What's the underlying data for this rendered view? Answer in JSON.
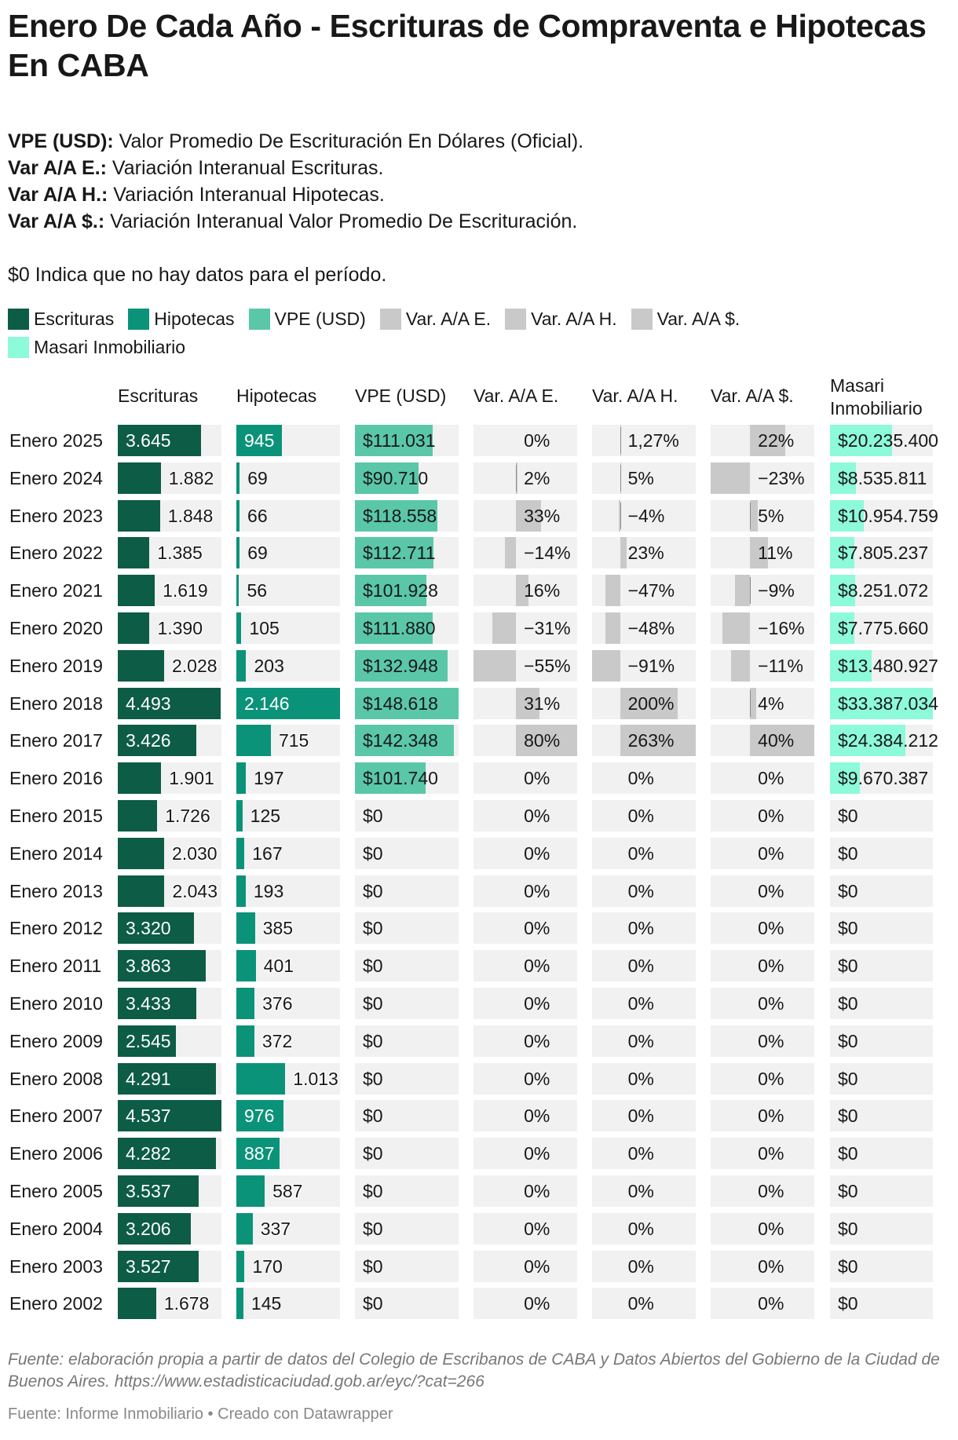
{
  "title": "Enero De Cada Año - Escrituras de Compraventa e Hipotecas En CABA",
  "description": [
    {
      "term": "VPE (USD):",
      "text": " Valor Promedio De Escrituración En Dólares (Oficial)."
    },
    {
      "term": "Var A/A E.:",
      "text": " Variación Interanual Escrituras."
    },
    {
      "term": "Var A/A H.:",
      "text": " Variación Interanual Hipotecas."
    },
    {
      "term": "Var A/A $.:",
      "text": " Variación Interanual Valor Promedio De Escrituración."
    }
  ],
  "note": "$0 Indica que no hay datos para el período.",
  "colors": {
    "escrituras": "#0d5c45",
    "hipotecas": "#0b9379",
    "vpe": "#5ac7a8",
    "var": "#c9c9c9",
    "masari": "#8dfad9",
    "cell_bg": "#f1f1f1"
  },
  "chart_data": {
    "type": "table",
    "legend": [
      "Escrituras",
      "Hipotecas",
      "VPE (USD)",
      "Var. A/A E.",
      "Var. A/A H.",
      "Var. A/A $.",
      "Masari Inmobiliario"
    ],
    "columns": [
      "Escrituras",
      "Hipotecas",
      "VPE (USD)",
      "Var. A/A E.",
      "Var. A/A H.",
      "Var. A/A $.",
      "Masari Inmobiliario"
    ],
    "categories": [
      "Enero 2025",
      "Enero 2024",
      "Enero 2023",
      "Enero 2022",
      "Enero 2021",
      "Enero 2020",
      "Enero 2019",
      "Enero 2018",
      "Enero 2017",
      "Enero 2016",
      "Enero 2015",
      "Enero 2014",
      "Enero 2013",
      "Enero 2012",
      "Enero 2011",
      "Enero 2010",
      "Enero 2009",
      "Enero 2008",
      "Enero 2007",
      "Enero 2006",
      "Enero 2005",
      "Enero 2004",
      "Enero 2003",
      "Enero 2002"
    ],
    "series": [
      {
        "name": "Escrituras",
        "values": [
          3645,
          1882,
          1848,
          1385,
          1619,
          1390,
          2028,
          4493,
          3426,
          1901,
          1726,
          2030,
          2043,
          3320,
          3863,
          3433,
          2545,
          4291,
          4537,
          4282,
          3537,
          3206,
          3527,
          1678
        ],
        "labels": [
          "3.645",
          "1.882",
          "1.848",
          "1.385",
          "1.619",
          "1.390",
          "2.028",
          "4.493",
          "3.426",
          "1.901",
          "1.726",
          "2.030",
          "2.043",
          "3.320",
          "3.863",
          "3.433",
          "2.545",
          "4.291",
          "4.537",
          "4.282",
          "3.537",
          "3.206",
          "3.527",
          "1.678"
        ]
      },
      {
        "name": "Hipotecas",
        "values": [
          945,
          69,
          66,
          69,
          56,
          105,
          203,
          2146,
          715,
          197,
          125,
          167,
          193,
          385,
          401,
          376,
          372,
          1013,
          976,
          887,
          587,
          337,
          170,
          145
        ],
        "labels": [
          "945",
          "69",
          "66",
          "69",
          "56",
          "105",
          "203",
          "2.146",
          "715",
          "197",
          "125",
          "167",
          "193",
          "385",
          "401",
          "376",
          "372",
          "1.013",
          "976",
          "887",
          "587",
          "337",
          "170",
          "145"
        ]
      },
      {
        "name": "VPE (USD)",
        "values": [
          111031,
          90710,
          118558,
          112711,
          101928,
          111880,
          132948,
          148618,
          142348,
          101740,
          0,
          0,
          0,
          0,
          0,
          0,
          0,
          0,
          0,
          0,
          0,
          0,
          0,
          0
        ],
        "labels": [
          "$111.031",
          "$90.710",
          "$118.558",
          "$112.711",
          "$101.928",
          "$111.880",
          "$132.948",
          "$148.618",
          "$142.348",
          "$101.740",
          "$0",
          "$0",
          "$0",
          "$0",
          "$0",
          "$0",
          "$0",
          "$0",
          "$0",
          "$0",
          "$0",
          "$0",
          "$0",
          "$0"
        ]
      },
      {
        "name": "Var. A/A E.",
        "values": [
          0,
          2,
          33,
          -14,
          16,
          -31,
          -55,
          31,
          80,
          0,
          0,
          0,
          0,
          0,
          0,
          0,
          0,
          0,
          0,
          0,
          0,
          0,
          0,
          0
        ],
        "labels": [
          "0%",
          "2%",
          "33%",
          "−14%",
          "16%",
          "−31%",
          "−55%",
          "31%",
          "80%",
          "0%",
          "0%",
          "0%",
          "0%",
          "0%",
          "0%",
          "0%",
          "0%",
          "0%",
          "0%",
          "0%",
          "0%",
          "0%",
          "0%",
          "0%"
        ]
      },
      {
        "name": "Var. A/A H.",
        "values": [
          1.27,
          5,
          -4,
          23,
          -47,
          -48,
          -91,
          200,
          263,
          0,
          0,
          0,
          0,
          0,
          0,
          0,
          0,
          0,
          0,
          0,
          0,
          0,
          0,
          0
        ],
        "labels": [
          "1,27%",
          "5%",
          "−4%",
          "23%",
          "−47%",
          "−48%",
          "−91%",
          "200%",
          "263%",
          "0%",
          "0%",
          "0%",
          "0%",
          "0%",
          "0%",
          "0%",
          "0%",
          "0%",
          "0%",
          "0%",
          "0%",
          "0%",
          "0%",
          "0%"
        ]
      },
      {
        "name": "Var. A/A $.",
        "values": [
          22,
          -23,
          5,
          11,
          -9,
          -16,
          -11,
          4,
          40,
          0,
          0,
          0,
          0,
          0,
          0,
          0,
          0,
          0,
          0,
          0,
          0,
          0,
          0,
          0
        ],
        "labels": [
          "22%",
          "−23%",
          "5%",
          "11%",
          "−9%",
          "−16%",
          "−11%",
          "4%",
          "40%",
          "0%",
          "0%",
          "0%",
          "0%",
          "0%",
          "0%",
          "0%",
          "0%",
          "0%",
          "0%",
          "0%",
          "0%",
          "0%",
          "0%",
          "0%"
        ]
      },
      {
        "name": "Masari Inmobiliario",
        "values": [
          20235400,
          8535811,
          10954759,
          7805237,
          8251072,
          7775660,
          13480927,
          33387034,
          24384212,
          9670387,
          0,
          0,
          0,
          0,
          0,
          0,
          0,
          0,
          0,
          0,
          0,
          0,
          0,
          0
        ],
        "labels": [
          "$20.235.400",
          "$8.535.811",
          "$10.954.759",
          "$7.805.237",
          "$8.251.072",
          "$7.775.660",
          "$13.480.927",
          "$33.387.034",
          "$24.384.212",
          "$9.670.387",
          "$0",
          "$0",
          "$0",
          "$0",
          "$0",
          "$0",
          "$0",
          "$0",
          "$0",
          "$0",
          "$0",
          "$0",
          "$0",
          "$0"
        ]
      }
    ]
  },
  "source": "Fuente: elaboración propia a partir de datos del Colegio de Escribanos de CABA y Datos Abiertos del Gobierno de la Ciudad de Buenos Aires. https://www.estadisticaciudad.gob.ar/eyc/?cat=266",
  "credit": "Fuente: Informe Inmobiliario • Creado con Datawrapper"
}
